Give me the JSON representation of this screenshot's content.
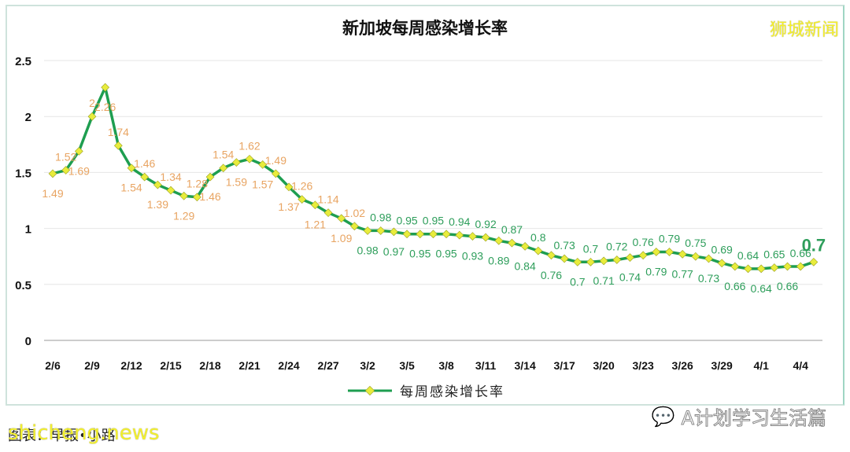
{
  "header": {
    "title": "新加坡每周感染增长率",
    "brand": "狮城新闻"
  },
  "legend": {
    "label": "每周感染增长率"
  },
  "footer": {
    "source": "图表：早报•小路",
    "watermark": "shicheng.news",
    "wechat_account": "A计划学习生活篇"
  },
  "colors": {
    "line": "#1e9e50",
    "marker": "#e8ec3c",
    "label_high": "#e8a462",
    "label_low": "#2e9e5b",
    "grid": "#e6e6e6"
  },
  "chart_data": {
    "type": "line",
    "title": "新加坡每周感染增长率",
    "xlabel": "",
    "ylabel": "",
    "ylim": [
      0,
      2.5
    ],
    "yticks": [
      0,
      0.5,
      1,
      1.5,
      2,
      2.5
    ],
    "grid": true,
    "legend_position": "bottom",
    "xtick_labels": [
      "2/6",
      "2/9",
      "2/12",
      "2/15",
      "2/18",
      "2/21",
      "2/24",
      "2/27",
      "3/2",
      "3/5",
      "3/8",
      "3/11",
      "3/14",
      "3/17",
      "3/20",
      "3/23",
      "3/26",
      "3/29",
      "4/1",
      "4/4"
    ],
    "x": [
      "2/6",
      "2/7",
      "2/8",
      "2/9",
      "2/10",
      "2/11",
      "2/12",
      "2/13",
      "2/14",
      "2/15",
      "2/16",
      "2/17",
      "2/18",
      "2/19",
      "2/20",
      "2/21",
      "2/22",
      "2/23",
      "2/24",
      "2/25",
      "2/26",
      "2/27",
      "2/28",
      "3/1",
      "3/2",
      "3/3",
      "3/4",
      "3/5",
      "3/6",
      "3/7",
      "3/8",
      "3/9",
      "3/10",
      "3/11",
      "3/12",
      "3/13",
      "3/14",
      "3/15",
      "3/16",
      "3/17",
      "3/18",
      "3/19",
      "3/20",
      "3/21",
      "3/22",
      "3/23",
      "3/24",
      "3/25",
      "3/26",
      "3/27",
      "3/28",
      "3/29",
      "3/30",
      "3/31",
      "4/1",
      "4/2",
      "4/3",
      "4/4",
      "4/5"
    ],
    "series": [
      {
        "name": "每周感染增长率",
        "values": [
          1.49,
          1.52,
          1.69,
          2,
          2.26,
          1.74,
          1.54,
          1.46,
          1.39,
          1.34,
          1.29,
          1.28,
          1.46,
          1.54,
          1.59,
          1.62,
          1.57,
          1.49,
          1.37,
          1.26,
          1.21,
          1.14,
          1.09,
          1.02,
          0.98,
          0.98,
          0.97,
          0.95,
          0.95,
          0.95,
          0.95,
          0.94,
          0.93,
          0.92,
          0.89,
          0.87,
          0.84,
          0.8,
          0.76,
          0.73,
          0.7,
          0.7,
          0.71,
          0.72,
          0.74,
          0.76,
          0.79,
          0.79,
          0.77,
          0.75,
          0.73,
          0.69,
          0.66,
          0.64,
          0.64,
          0.65,
          0.66,
          0.66,
          0.7
        ]
      }
    ],
    "annotations": [
      {
        "text": "0.7",
        "note": "latest value highlighted in bold"
      }
    ]
  }
}
